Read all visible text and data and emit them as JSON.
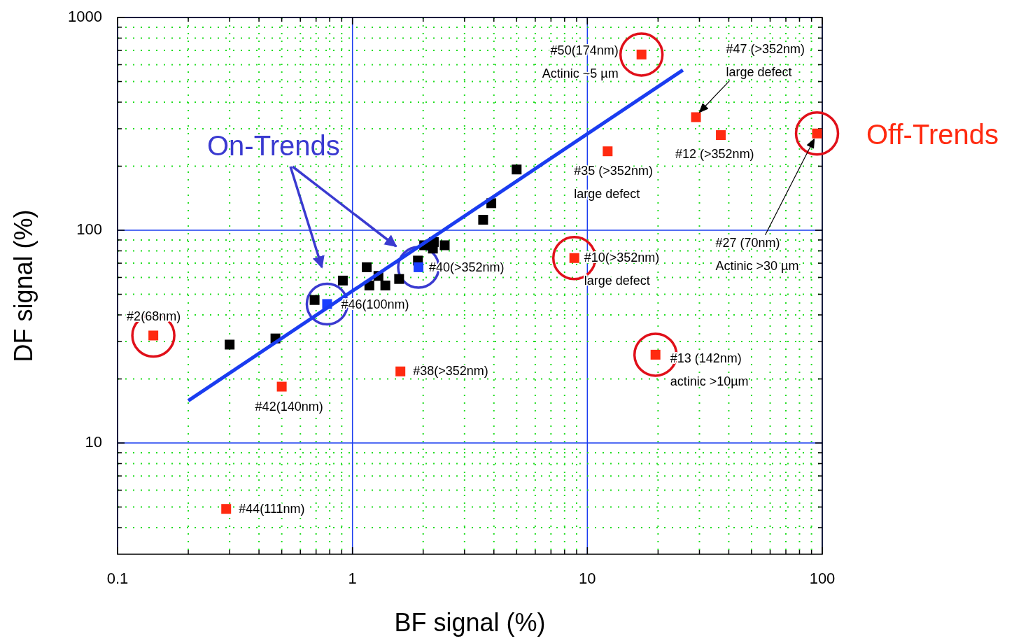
{
  "chart_data": {
    "type": "scatter",
    "xlabel": "BF signal (%)",
    "ylabel": "DF signal (%)",
    "log": "xy",
    "grid": true,
    "marker": "square",
    "xlim": [
      0.1,
      100
    ],
    "ylim": [
      3,
      1000
    ],
    "xticks": [
      0.1,
      {
        "value": 0.2,
        "label": null
      },
      {
        "value": 0.3,
        "label": null
      },
      {
        "value": 0.4,
        "label": null
      },
      {
        "value": 0.5,
        "label": null
      },
      {
        "value": 0.6,
        "label": null
      },
      {
        "value": 0.7,
        "label": null
      },
      {
        "value": 0.8,
        "label": null
      },
      {
        "value": 0.9,
        "label": null
      },
      1,
      {
        "value": 2,
        "label": null
      },
      {
        "value": 3,
        "label": null
      },
      {
        "value": 4,
        "label": null
      },
      {
        "value": 5,
        "label": null
      },
      {
        "value": 6,
        "label": null
      },
      {
        "value": 7,
        "label": null
      },
      {
        "value": 8,
        "label": null
      },
      {
        "value": 9,
        "label": null
      },
      10,
      {
        "value": 20,
        "label": null
      },
      {
        "value": 30,
        "label": null
      },
      {
        "value": 40,
        "label": null
      },
      {
        "value": 50,
        "label": null
      },
      {
        "value": 60,
        "label": null
      },
      {
        "value": 70,
        "label": null
      },
      {
        "value": 80,
        "label": null
      },
      {
        "value": 90,
        "label": null
      },
      100
    ],
    "yticks": [
      {
        "value": 4,
        "label": null
      },
      {
        "value": 5,
        "label": null
      },
      {
        "value": 6,
        "label": null
      },
      {
        "value": 7,
        "label": null
      },
      {
        "value": 8,
        "label": null
      },
      {
        "value": 9,
        "label": null
      },
      10,
      {
        "value": 20,
        "label": null
      },
      {
        "value": 30,
        "label": null
      },
      {
        "value": 40,
        "label": null
      },
      {
        "value": 50,
        "label": null
      },
      {
        "value": 60,
        "label": null
      },
      {
        "value": 70,
        "label": null
      },
      {
        "value": 80,
        "label": null
      },
      {
        "value": 90,
        "label": null
      },
      100,
      {
        "value": 200,
        "label": null
      },
      {
        "value": 300,
        "label": null
      },
      {
        "value": 400,
        "label": null
      },
      {
        "value": 500,
        "label": null
      },
      {
        "value": 600,
        "label": null
      },
      {
        "value": 700,
        "label": null
      },
      {
        "value": 800,
        "label": null
      },
      {
        "value": 900,
        "label": null
      },
      1000
    ],
    "series": [
      {
        "color": "#000000",
        "x": [
          0.3,
          0.47,
          0.69,
          0.91,
          1.15,
          1.18,
          1.29,
          1.38,
          1.58,
          1.9,
          2.02,
          2.2,
          2.22,
          2.47,
          3.6,
          3.9,
          5.0
        ],
        "values": [
          29,
          31,
          47,
          58,
          67,
          55,
          61,
          55,
          59,
          72,
          85,
          82,
          88,
          85,
          112,
          134,
          193
        ]
      },
      {
        "color": "#1a40ff",
        "x": [
          0.78,
          1.91
        ],
        "values": [
          45,
          67
        ]
      },
      {
        "color": "#ff2a10",
        "x": [
          17,
          29,
          37,
          95,
          12.2,
          8.8,
          19.5,
          0.142,
          0.5,
          1.6,
          0.29
        ],
        "values": [
          670,
          340,
          280,
          285,
          235,
          74,
          26,
          32,
          18.4,
          21.7,
          4.9
        ]
      },
      {
        "type": "line",
        "color": "#1a3cf0",
        "marker": "none",
        "x": [
          0.2,
          25.5
        ],
        "values": [
          15.8,
          566
        ]
      }
    ],
    "annotations": [
      "On-Trends",
      "Off-Trends",
      {
        "text": "#50(174nm)\nActinic ~5 µm",
        "x": 17,
        "y": 670
      },
      "#47 (>352nm)\nlarge defect",
      {
        "text": "#12 (>352nm)",
        "x": 37,
        "y": 280
      },
      {
        "text": "#35 (>352nm)\nlarge defect",
        "x": 12.2,
        "y": 235
      },
      "#27 (70nm)\nActinic >30 µm",
      {
        "text": "#10(>352nm)\nlarge defect",
        "x": 8.8,
        "y": 74
      },
      {
        "text": "#13 (142nm)\nactinic >10µm",
        "x": 19.5,
        "y": 26
      },
      {
        "text": "#2(68nm)",
        "x": 0.142,
        "y": 32
      },
      {
        "text": "#42(140nm)",
        "x": 0.5,
        "y": 18.4
      },
      {
        "text": "#38(>352nm)",
        "x": 1.6,
        "y": 21.7
      },
      {
        "text": "#44(111nm)",
        "x": 0.29,
        "y": 4.9
      },
      {
        "text": "#46(100nm)",
        "x": 0.78,
        "y": 45
      },
      {
        "text": "#40(>352nm)",
        "x": 1.91,
        "y": 67
      }
    ]
  }
}
